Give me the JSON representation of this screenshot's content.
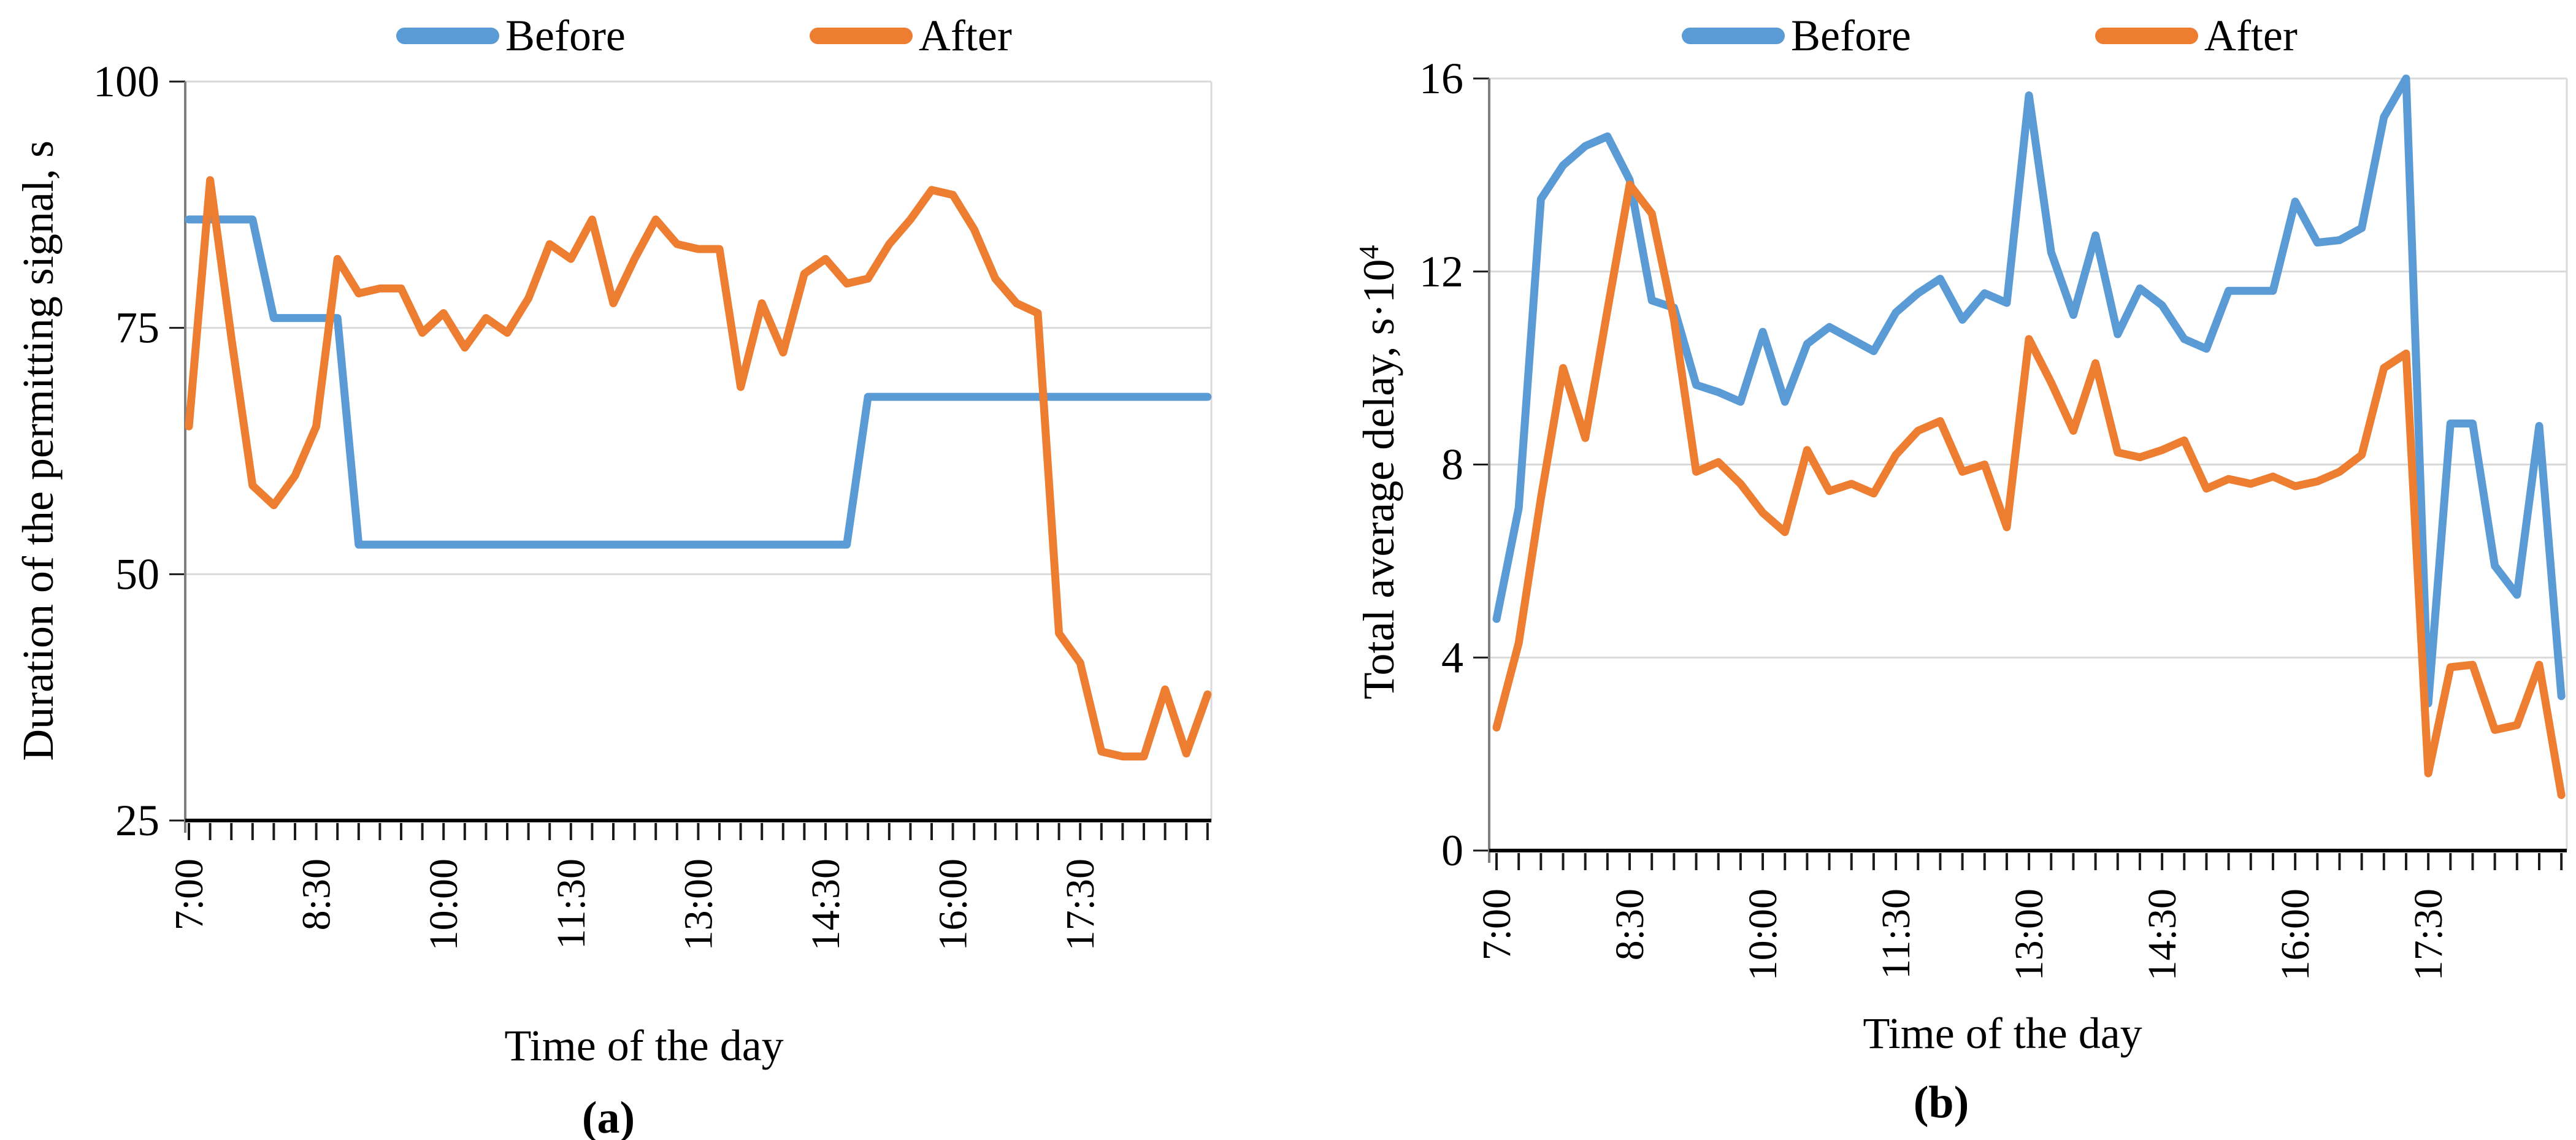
{
  "figure": {
    "panels": [
      {
        "panel_label": "(a)"
      },
      {
        "panel_label": "(b)"
      }
    ]
  },
  "colors": {
    "before": "#5B9BD5",
    "after": "#ED7D31",
    "gridline": "#D9D9D9",
    "y_axis": "#7F7F7F",
    "x_axis": "#000000",
    "tick": "#1a1a1a",
    "text": "#000000"
  },
  "chart_data": [
    {
      "type": "line",
      "title": "",
      "xlabel": "Time of the day",
      "ylabel": "Duration of the permitting signal, s",
      "ylabel_sup": "",
      "x_tick_labels": [
        "7:00",
        "8:30",
        "10:00",
        "11:30",
        "13:00",
        "14:30",
        "16:00",
        "17:30"
      ],
      "x_label_every": 6,
      "x_interval_minutes": 15,
      "ylim": [
        25,
        100
      ],
      "yticks": [
        25,
        50,
        75,
        100
      ],
      "ytick_labels": [
        "25",
        "50",
        "75",
        "100"
      ],
      "grid": true,
      "legend_position": "top",
      "series": [
        {
          "name": "Before",
          "color": "#5B9BD5",
          "values": [
            86,
            86,
            86,
            86,
            76,
            76,
            76,
            76,
            53,
            53,
            53,
            53,
            53,
            53,
            53,
            53,
            53,
            53,
            53,
            53,
            53,
            53,
            53,
            53,
            53,
            53,
            53,
            53,
            53,
            53,
            53,
            53,
            68,
            68,
            68,
            68,
            68,
            68,
            68,
            68,
            68,
            68,
            68,
            68,
            68,
            68,
            68,
            68,
            68
          ]
        },
        {
          "name": "After",
          "color": "#ED7D31",
          "values": [
            65,
            90,
            74,
            59,
            57,
            60,
            65,
            82,
            78.5,
            79,
            79,
            74.5,
            76.5,
            73,
            76,
            74.5,
            78,
            83.5,
            82,
            86,
            77.5,
            82,
            86,
            83.5,
            83,
            83,
            69,
            77.5,
            72.5,
            80.5,
            82,
            79.5,
            80,
            83.5,
            86,
            89,
            88.5,
            85,
            80,
            77.5,
            76.5,
            44,
            41,
            32,
            31.5,
            31.5,
            38.3,
            31.8,
            37.8
          ]
        }
      ]
    },
    {
      "type": "line",
      "title": "",
      "xlabel": "Time of the day",
      "ylabel": "Total average delay, s·10",
      "ylabel_sup": "4",
      "x_tick_labels": [
        "7:00",
        "8:30",
        "10:00",
        "11:30",
        "13:00",
        "14:30",
        "16:00",
        "17:30"
      ],
      "x_label_every": 6,
      "x_interval_minutes": 15,
      "ylim": [
        0,
        16
      ],
      "yticks": [
        0,
        4,
        8,
        12,
        16
      ],
      "ytick_labels": [
        "0",
        "4",
        "8",
        "12",
        "16"
      ],
      "grid": true,
      "legend_position": "top",
      "series": [
        {
          "name": "Before",
          "color": "#5B9BD5",
          "values": [
            4.8,
            7.1,
            13.5,
            14.2,
            14.6,
            14.8,
            13.9,
            11.4,
            11.25,
            9.65,
            9.5,
            9.3,
            10.75,
            9.3,
            10.5,
            10.85,
            10.6,
            10.35,
            11.15,
            11.55,
            11.85,
            11.0,
            11.55,
            11.35,
            15.65,
            12.4,
            11.1,
            12.75,
            10.7,
            11.65,
            11.3,
            10.6,
            10.4,
            11.6,
            11.6,
            11.6,
            13.45,
            12.6,
            12.65,
            12.9,
            15.2,
            16.0,
            3.05,
            8.85,
            8.85,
            5.9,
            5.3,
            8.8,
            3.2
          ]
        },
        {
          "name": "After",
          "color": "#ED7D31",
          "values": [
            2.55,
            4.3,
            7.3,
            10.0,
            8.55,
            11.2,
            13.8,
            13.2,
            11.0,
            7.85,
            8.05,
            7.6,
            7.0,
            6.6,
            8.3,
            7.45,
            7.6,
            7.4,
            8.2,
            8.7,
            8.9,
            7.85,
            8.0,
            6.7,
            10.6,
            9.7,
            8.7,
            10.1,
            8.25,
            8.15,
            8.3,
            8.5,
            7.5,
            7.7,
            7.6,
            7.75,
            7.55,
            7.65,
            7.85,
            8.2,
            10.0,
            10.3,
            1.6,
            3.8,
            3.85,
            2.5,
            2.6,
            3.85,
            1.15
          ]
        }
      ]
    }
  ]
}
